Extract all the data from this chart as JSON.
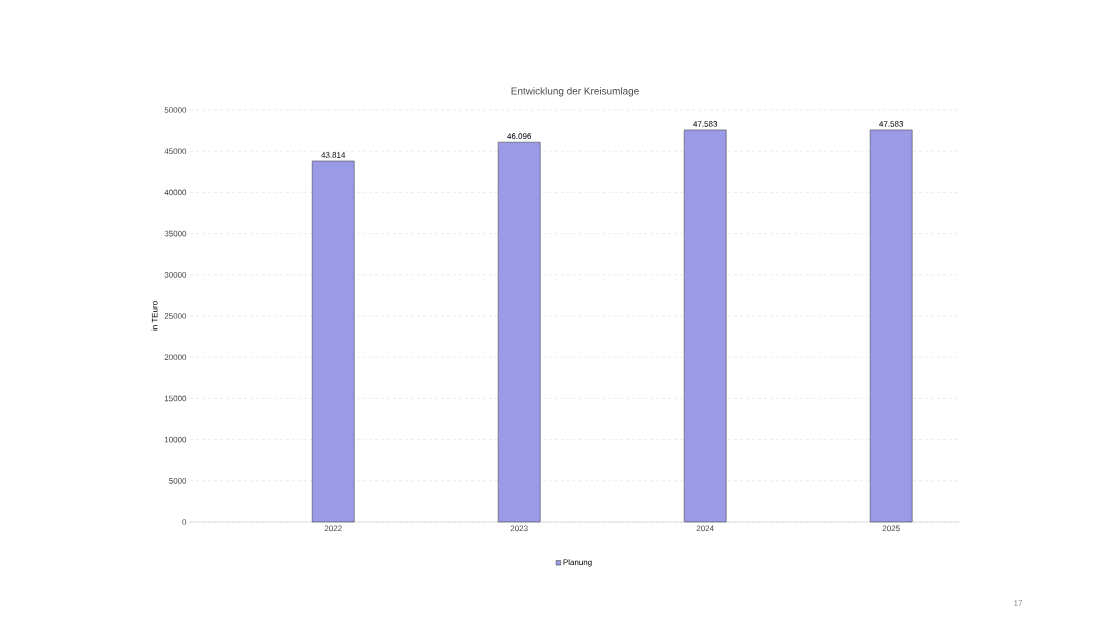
{
  "chart_data": {
    "type": "bar",
    "title": "Entwicklung der Kreisumlage",
    "ylabel": "in TEuro",
    "categories": [
      "2022",
      "2023",
      "2024",
      "2025"
    ],
    "series": [
      {
        "name": "Planung",
        "color": "#9a9ae6",
        "values": [
          43814,
          46096,
          47583,
          47583
        ],
        "value_labels": [
          "43.814",
          "46.096",
          "47.583",
          "47.583"
        ]
      }
    ],
    "ylim": [
      0,
      50000
    ],
    "yticks": [
      0,
      5000,
      10000,
      15000,
      20000,
      25000,
      30000,
      35000,
      40000,
      45000,
      50000
    ],
    "grid": "y",
    "legend": "bottom",
    "annotations": [
      "17"
    ]
  }
}
